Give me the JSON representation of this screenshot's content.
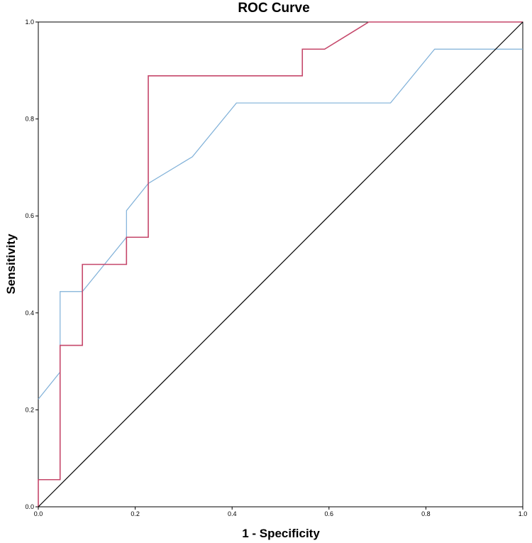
{
  "chart_data": {
    "type": "line",
    "title": "ROC Curve",
    "xlabel": "1 - Specificity",
    "ylabel": "Sensitivity",
    "xlim": [
      0,
      1
    ],
    "ylim": [
      0,
      1
    ],
    "xticks": [
      "0.0",
      "0.2",
      "0.4",
      "0.6",
      "0.8",
      "1.0"
    ],
    "yticks": [
      "0.0",
      "0.2",
      "0.4",
      "0.6",
      "0.8",
      "1.0"
    ],
    "grid": false,
    "legend": "none",
    "series": [
      {
        "name": "Blue curve",
        "color": "#7fb0d8",
        "x": [
          0,
          0.045,
          0.045,
          0.091,
          0.182,
          0.182,
          0.227,
          0.318,
          0.409,
          0.727,
          0.818,
          1.0
        ],
        "y": [
          0.222,
          0.278,
          0.444,
          0.444,
          0.556,
          0.611,
          0.667,
          0.722,
          0.833,
          0.833,
          0.944,
          0.944
        ]
      },
      {
        "name": "Red curve",
        "color": "#c5476a",
        "x": [
          0,
          0,
          0.045,
          0.045,
          0.091,
          0.091,
          0.182,
          0.182,
          0.227,
          0.227,
          0.545,
          0.545,
          0.591,
          0.682,
          1.0
        ],
        "y": [
          0,
          0.056,
          0.056,
          0.333,
          0.333,
          0.5,
          0.5,
          0.556,
          0.556,
          0.889,
          0.889,
          0.944,
          0.944,
          1.0,
          1.0
        ]
      },
      {
        "name": "Reference line",
        "color": "#000000",
        "x": [
          0,
          1
        ],
        "y": [
          0,
          1
        ]
      }
    ]
  }
}
